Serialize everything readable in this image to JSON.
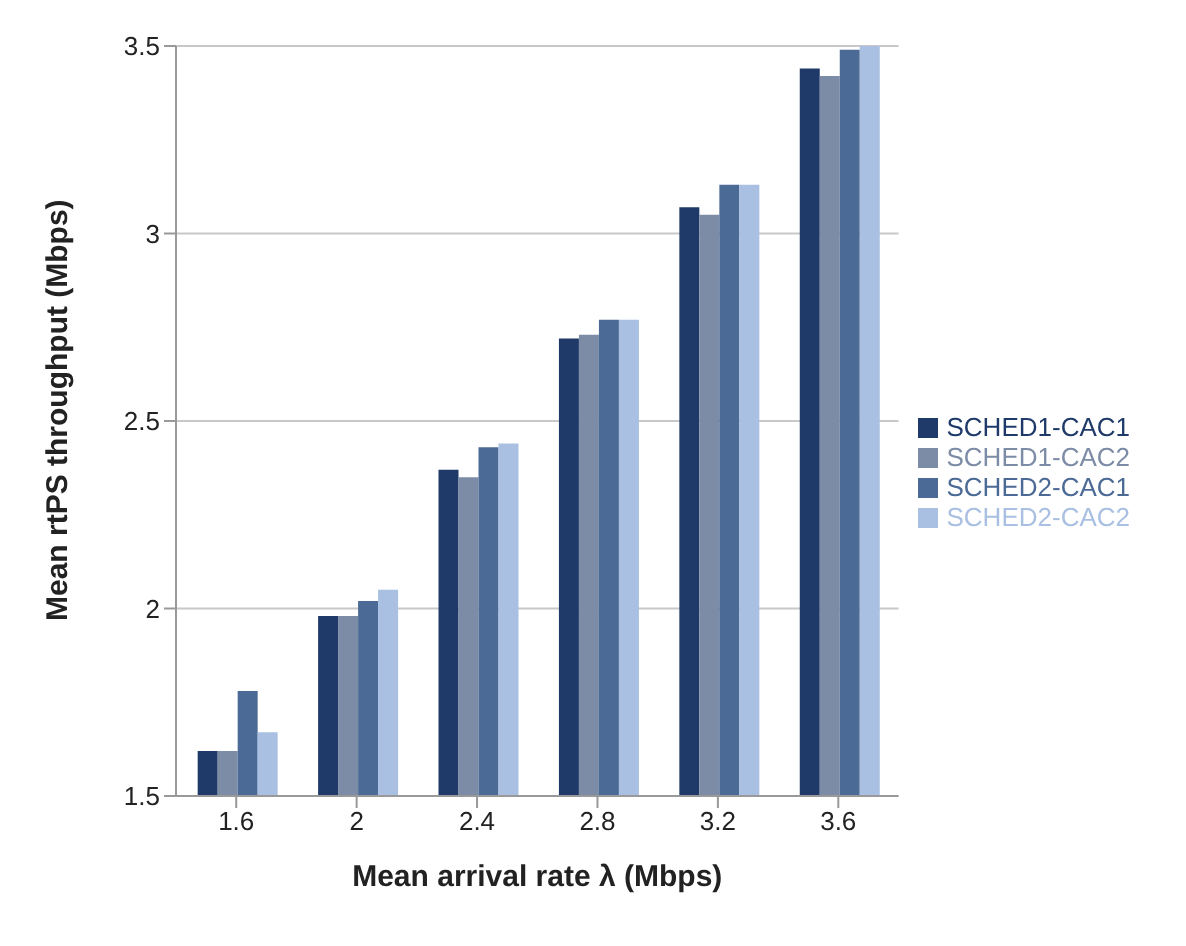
{
  "chart_data": {
    "type": "bar",
    "xlabel": "Mean arrival rate λ (Mbps)",
    "ylabel": "Mean rtPS throughput (Mbps)",
    "categories": [
      "1.6",
      "2",
      "2.4",
      "2.8",
      "3.2",
      "3.6"
    ],
    "series": [
      {
        "name": "SCHED1-CAC1",
        "color": "#1f3a68",
        "values": [
          1.62,
          1.98,
          2.37,
          2.72,
          3.07,
          3.44
        ]
      },
      {
        "name": "SCHED1-CAC2",
        "color": "#7d8ca6",
        "values": [
          1.62,
          1.98,
          2.35,
          2.73,
          3.05,
          3.42
        ]
      },
      {
        "name": "SCHED2-CAC1",
        "color": "#4c6a96",
        "values": [
          1.78,
          2.02,
          2.43,
          2.77,
          3.13,
          3.49
        ]
      },
      {
        "name": "SCHED2-CAC2",
        "color": "#a9c0e2",
        "values": [
          1.67,
          2.05,
          2.44,
          2.77,
          3.13,
          3.5
        ]
      }
    ],
    "ylim": [
      1.5,
      3.5
    ],
    "yticks": [
      1.5,
      2,
      2.5,
      3,
      3.5
    ],
    "grid": "y",
    "legend": "right"
  }
}
